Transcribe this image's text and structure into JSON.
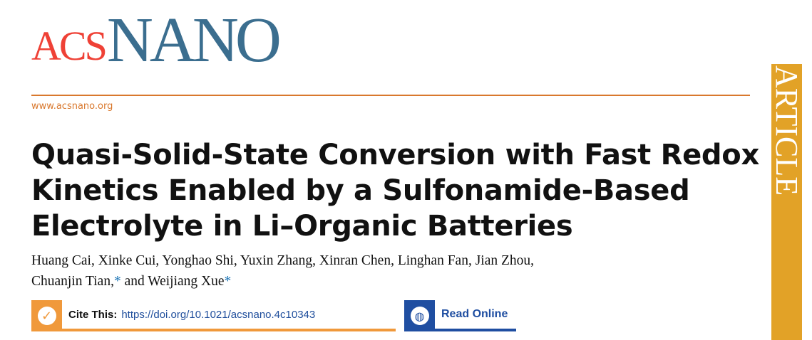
{
  "journal": {
    "logo_acs": "ACS",
    "logo_nano": "NANO",
    "url": "www.acsnano.org",
    "section": "ARTICLE"
  },
  "article": {
    "title_lines": [
      "Quasi-Solid-State Conversion with Fast Redox",
      "Kinetics Enabled by a Sulfonamide-Based",
      "Electrolyte in Li–Organic Batteries"
    ],
    "authors_line1": "Huang Cai, Xinke Cui, Yonghao Shi, Yuxin Zhang, Xinran Chen, Linghan Fan, Jian Zhou,",
    "authors_line2_a": "Chuanjin Tian,",
    "star": "*",
    "authors_line2_b": " and Weijiang Xue"
  },
  "cite": {
    "label": "Cite This:",
    "doi": "https://doi.org/10.1021/acsnano.4c10343",
    "icon": "checkmark-icon"
  },
  "read_online": {
    "label": "Read Online",
    "icon": "globe-icon"
  },
  "colors": {
    "acs_red": "#ef4136",
    "nano_blue": "#3b6e8f",
    "orange": "#f0993b",
    "blue": "#1f4ea1",
    "article_bar": "#e2a227"
  }
}
